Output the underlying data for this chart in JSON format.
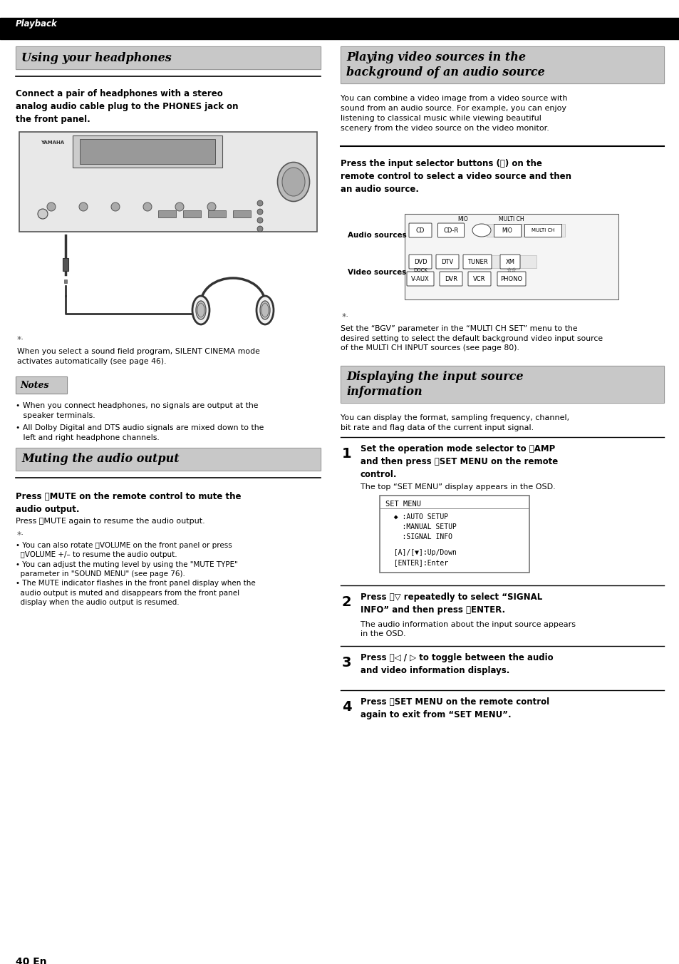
{
  "page_bg": "#ffffff",
  "header_bg": "#000000",
  "header_text": "Playback",
  "header_text_color": "#ffffff",
  "section_bg": "#c8c8c8",
  "title_left_1": "Using your headphones",
  "title_right_1": "Playing video sources in the\nbackground of an audio source",
  "title_left_2": "Muting the audio output",
  "title_left_3": "Displaying the input source\ninformation",
  "body_left_1": "Connect a pair of headphones with a stereo\nanalog audio cable plug to the PHONES jack on\nthe front panel.",
  "tip_text_1": "When you select a sound field program, SILENT CINEMA mode\nactivates automatically (see page 46).",
  "notes_title": "Notes",
  "notes_text_1": "• When you connect headphones, no signals are output at the\n   speaker terminals.",
  "notes_text_2": "• All Dolby Digital and DTS audio signals are mixed down to the\n   left and right headphone channels.",
  "mute_text_1a": "Press Ⓛ",
  "mute_text_1b": "MUTE",
  "mute_text_1c": " on the remote control to mute the\naudio output.",
  "mute_text_2a": "Press Ⓛ",
  "mute_text_2b": "MUTE",
  "mute_text_2c": " again to resume the audio output.",
  "mute_tips": "• You can also rotate ⓉVOLUME on the front panel or press\n  ⓉVOLUME +/– to resume the audio output.\n• You can adjust the muting level by using the \"MUTE TYPE\"\n  parameter in \"SOUND MENU\" (see page 76).\n• The MUTE indicator flashes in the front panel display when the\n  audio output is muted and disappears from the front panel\n  display when the audio output is resumed.",
  "right_body_1": "You can combine a video image from a video source with\nsound from an audio source. For example, you can enjoy\nlistening to classical music while viewing beautiful\nscenery from the video source on the video monitor.",
  "right_subtitle_1": "Press the input selector buttons (Ⓐ) on the\nremote control to select a video source and then\nan audio source.",
  "right_body_2": "You can display the format, sampling frequency, channel,\nbit rate and flag data of the current input signal.",
  "step1_bold": "Set the operation mode selector to ⓇAMP\nand then press ⓃSET MENU on the remote\ncontrol.",
  "step1_normal": "The top “SET MENU” display appears in the OSD.",
  "step2_bold": "Press ⓓ▽ repeatedly to select “SIGNAL\nINFO” and then press ⓓENTER.",
  "step2_normal": "The audio information about the input source appears\nin the OSD.",
  "step3_bold": "Press ⓓ◁ / ▷ to toggle between the audio\nand video information displays.",
  "step4_bold": "Press ⓃSET MENU on the remote control\nagain to exit from “SET MENU”.",
  "page_number": "40 En",
  "osd_line1": "SET MENU",
  "osd_line2": "  ◆ :AUTO SETUP",
  "osd_line3": "    :MANUAL SETUP",
  "osd_line4": "    :SIGNAL INFO",
  "osd_line5": "",
  "osd_line6": "  [A]/[▼]:Up/Down",
  "osd_line7": "  [ENTER]:Enter",
  "bgv_tip": "Set the “BGV” parameter in the “MULTI CH SET” menu to the\ndesired setting to select the default background video input source\nof the MULTI CH INPUT sources (see page 80)."
}
